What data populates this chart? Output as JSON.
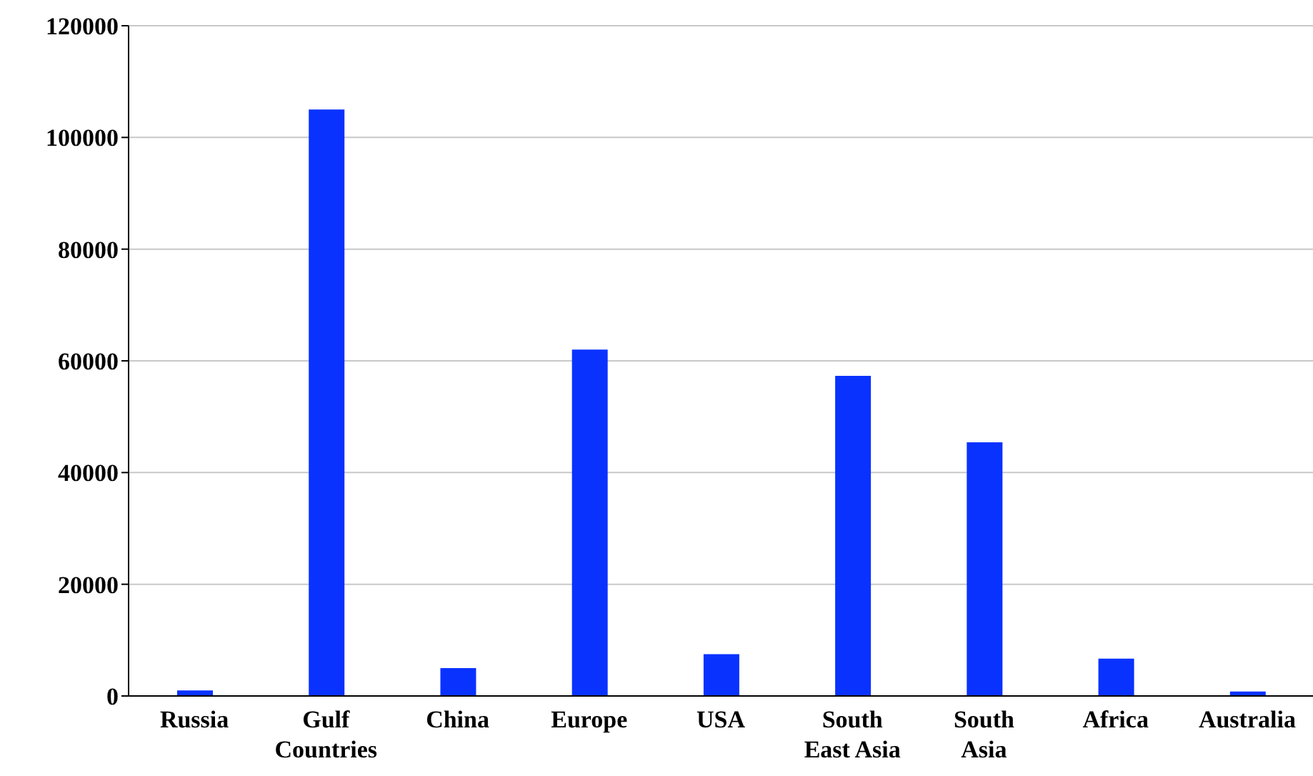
{
  "chart_data": {
    "type": "bar",
    "categories": [
      "Russia",
      "Gulf Countries",
      "China",
      "Europe",
      "USA",
      "South East Asia",
      "South Asia",
      "Africa",
      "Australia"
    ],
    "values": [
      1000,
      105000,
      5000,
      62000,
      7500,
      57300,
      45400,
      6700,
      800
    ],
    "color": "#0a32ff",
    "ylim": [
      0,
      120000
    ],
    "yticks": [
      0,
      20000,
      40000,
      60000,
      80000,
      100000,
      120000
    ],
    "grid": "y",
    "legend": false
  }
}
